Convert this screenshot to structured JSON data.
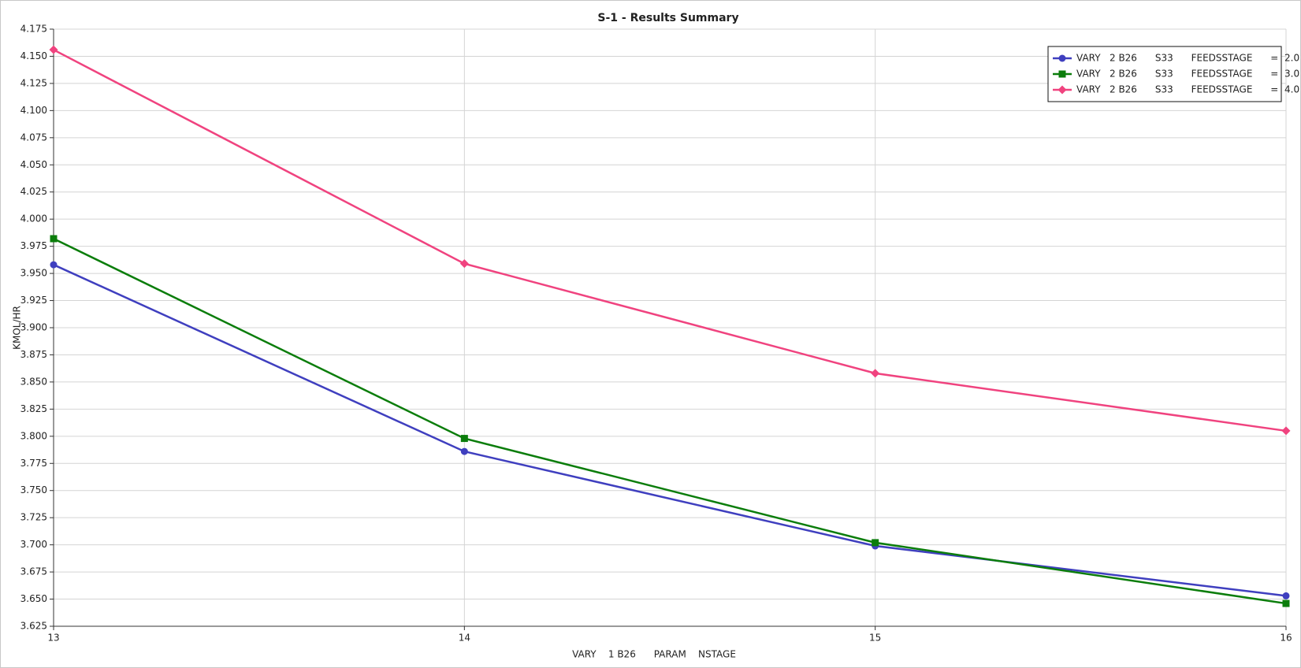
{
  "chart_data": {
    "type": "line",
    "title": "S-1 - Results Summary",
    "x_label": "VARY    1 B26      PARAM    NSTAGE",
    "y_label": "KMOL/HR",
    "x": [
      13,
      14,
      15,
      16
    ],
    "series": [
      {
        "name": "VARY   2 B26      S33      FEEDSSTAGE      =  2.0",
        "color": "#3f3fbf",
        "marker": "circle",
        "values": [
          3.958,
          3.786,
          3.699,
          3.653
        ]
      },
      {
        "name": "VARY   2 B26      S33      FEEDSSTAGE      =  3.0",
        "color": "#0b7d0b",
        "marker": "square",
        "values": [
          3.982,
          3.798,
          3.702,
          3.646
        ]
      },
      {
        "name": "VARY   2 B26      S33      FEEDSSTAGE      =  4.0",
        "color": "#f0437f",
        "marker": "diamond",
        "values": [
          4.156,
          3.959,
          3.858,
          3.805
        ]
      }
    ],
    "xlim": [
      13,
      16
    ],
    "xticks": [
      13,
      14,
      15,
      16
    ],
    "ylim": [
      3.625,
      4.175
    ],
    "yticks": [
      {
        "value": 3.625,
        "label": "3.625"
      },
      {
        "value": 3.65,
        "label": "3.650"
      },
      {
        "value": 3.675,
        "label": "3.675"
      },
      {
        "value": 3.7,
        "label": "3.700"
      },
      {
        "value": 3.725,
        "label": "3.725"
      },
      {
        "value": 3.75,
        "label": "3.750"
      },
      {
        "value": 3.775,
        "label": "3.775"
      },
      {
        "value": 3.8,
        "label": "3.800"
      },
      {
        "value": 3.825,
        "label": "3.825"
      },
      {
        "value": 3.85,
        "label": "3.850"
      },
      {
        "value": 3.875,
        "label": "3.875"
      },
      {
        "value": 3.9,
        "label": "3.900"
      },
      {
        "value": 3.925,
        "label": "3.925"
      },
      {
        "value": 3.95,
        "label": "3.950"
      },
      {
        "value": 3.975,
        "label": "3.975"
      },
      {
        "value": 4,
        "label": "4.000"
      },
      {
        "value": 4.025,
        "label": "4.025"
      },
      {
        "value": 4.05,
        "label": "4.050"
      },
      {
        "value": 4.075,
        "label": "4.075"
      },
      {
        "value": 4.1,
        "label": "4.100"
      },
      {
        "value": 4.125,
        "label": "4.125"
      },
      {
        "value": 4.15,
        "label": "4.150"
      },
      {
        "value": 4.175,
        "label": "4.175"
      }
    ],
    "grid": true,
    "legend_position": "upper-right"
  }
}
